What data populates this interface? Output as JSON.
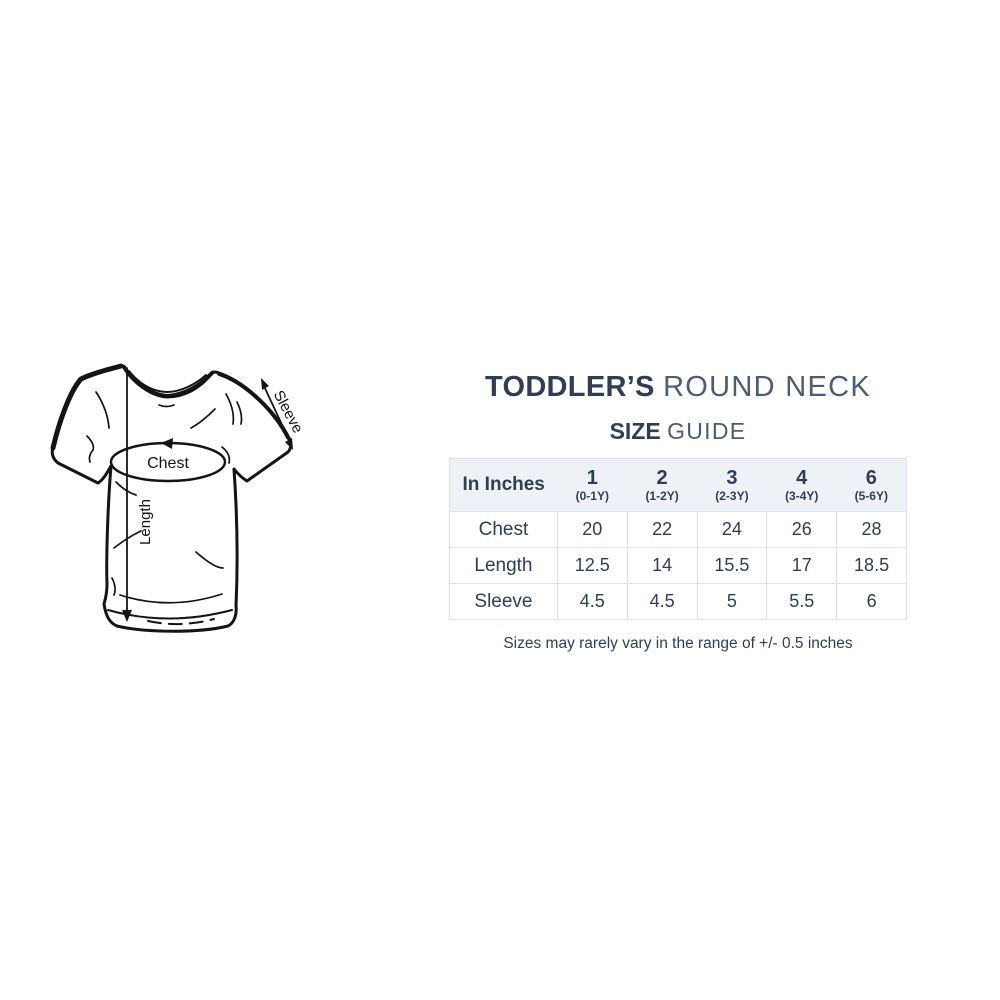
{
  "header": {
    "title_bold": "TODDLER’S",
    "title_light": "ROUND NECK",
    "subtitle_bold": "SIZE",
    "subtitle_light": "GUIDE"
  },
  "diagram": {
    "chest_label": "Chest",
    "length_label": "Length",
    "sleeve_label": "Sleeve"
  },
  "table": {
    "unit_header": "In Inches",
    "columns": [
      {
        "size": "1",
        "age": "(0-1Y)"
      },
      {
        "size": "2",
        "age": "(1-2Y)"
      },
      {
        "size": "3",
        "age": "(2-3Y)"
      },
      {
        "size": "4",
        "age": "(3-4Y)"
      },
      {
        "size": "6",
        "age": "(5-6Y)"
      }
    ],
    "rows": [
      {
        "label": "Chest",
        "values": [
          "20",
          "22",
          "24",
          "26",
          "28"
        ]
      },
      {
        "label": "Length",
        "values": [
          "12.5",
          "14",
          "15.5",
          "17",
          "18.5"
        ]
      },
      {
        "label": "Sleeve",
        "values": [
          "4.5",
          "4.5",
          "5",
          "5.5",
          "6"
        ]
      }
    ]
  },
  "footnote": "Sizes may rarely vary in the range of +/- 0.5 inches",
  "colors": {
    "text_navy": "#2f3e55",
    "text_navy_light": "#4c5c74",
    "table_header_bg": "#eef1f5",
    "table_border": "#dee3e9",
    "sketch_ink": "#141414",
    "background": "#ffffff"
  }
}
